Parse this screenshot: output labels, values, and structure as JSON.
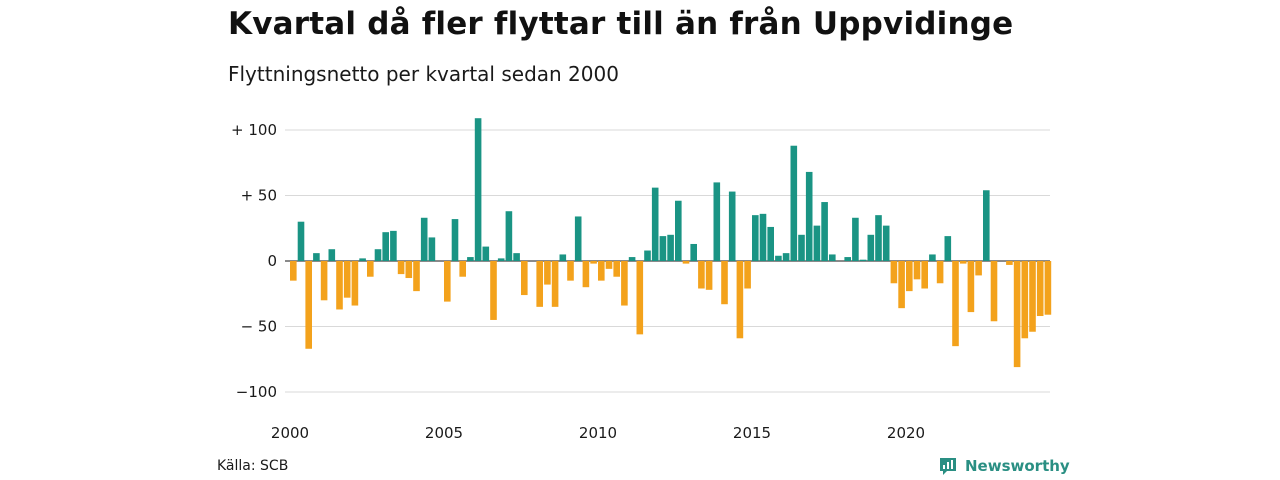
{
  "title": "Kvartal då fler flyttar till än från Uppvidinge",
  "subtitle": "Flyttningsnetto per kvartal sedan 2000",
  "source": "Källa: SCB",
  "brand": {
    "name": "Newsworthy",
    "icon": "newsworthy-logo-icon",
    "color": "#2a8f83"
  },
  "colors": {
    "positive": "#1a9484",
    "negative": "#f3a21c",
    "grid": "#d9d9d9"
  },
  "chart_data": {
    "type": "bar",
    "title": "Kvartal då fler flyttar till än från Uppvidinge",
    "subtitle": "Flyttningsnetto per kvartal sedan 2000",
    "xlabel": "",
    "ylabel": "",
    "ylim": [
      -100,
      110
    ],
    "grid": true,
    "legend": "none",
    "x_start": "2000Q1",
    "x_ticks": [
      {
        "year": 2000,
        "label": "2000"
      },
      {
        "year": 2005,
        "label": "2005"
      },
      {
        "year": 2010,
        "label": "2010"
      },
      {
        "year": 2015,
        "label": "2015"
      },
      {
        "year": 2020,
        "label": "2020"
      }
    ],
    "y_ticks": [
      {
        "value": 100,
        "label": "+ 100"
      },
      {
        "value": 50,
        "label": "+  50"
      },
      {
        "value": 0,
        "label": "0"
      },
      {
        "value": -50,
        "label": "− 50"
      },
      {
        "value": -100,
        "label": "−100"
      }
    ],
    "values": [
      -15,
      30,
      -67,
      6,
      -30,
      9,
      -37,
      -28,
      -34,
      2,
      -12,
      9,
      22,
      23,
      -10,
      -13,
      -23,
      33,
      18,
      0,
      -31,
      32,
      -12,
      3,
      109,
      11,
      -45,
      2,
      38,
      6,
      -26,
      0,
      -35,
      -18,
      -35,
      5,
      -15,
      34,
      -20,
      -2,
      -15,
      -6,
      -12,
      -34,
      3,
      -56,
      8,
      56,
      19,
      20,
      46,
      -2,
      13,
      -21,
      -22,
      60,
      -33,
      53,
      -59,
      -21,
      35,
      36,
      26,
      4,
      6,
      88,
      20,
      68,
      27,
      45,
      5,
      0,
      3,
      33,
      1,
      20,
      35,
      27,
      -17,
      -36,
      -23,
      -14,
      -21,
      5,
      -17,
      19,
      -65,
      -2,
      -39,
      -11,
      54,
      -46,
      0,
      -3,
      -81,
      -59,
      -54,
      -42,
      -41
    ]
  }
}
